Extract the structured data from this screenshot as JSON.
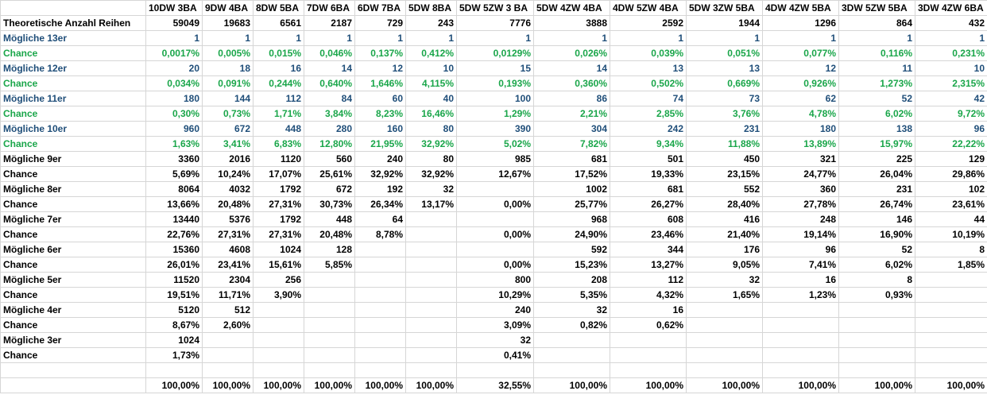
{
  "sheet": {
    "headers": [
      "",
      "10DW 3BA",
      "9DW 4BA",
      "8DW 5BA",
      "7DW 6BA",
      "6DW 7BA",
      "5DW 8BA",
      "5DW 5ZW 3 BA",
      "5DW 4ZW 4BA",
      "4DW 5ZW 4BA",
      "5DW 3ZW 5BA",
      "4DW 4ZW 5BA",
      "3DW 5ZW 5BA",
      "3DW 4ZW 6BA"
    ],
    "rows": [
      {
        "style": "header",
        "cells": [
          "Theoretische Anzahl Reihen",
          "59049",
          "19683",
          "6561",
          "2187",
          "729",
          "243",
          "7776",
          "3888",
          "2592",
          "1944",
          "1296",
          "864",
          "432"
        ]
      },
      {
        "style": "blue",
        "cells": [
          "Mögliche 13er",
          "1",
          "1",
          "1",
          "1",
          "1",
          "1",
          "1",
          "1",
          "1",
          "1",
          "1",
          "1",
          "1"
        ]
      },
      {
        "style": "green",
        "cells": [
          "Chance",
          "0,0017%",
          "0,005%",
          "0,015%",
          "0,046%",
          "0,137%",
          "0,412%",
          "0,0129%",
          "0,026%",
          "0,039%",
          "0,051%",
          "0,077%",
          "0,116%",
          "0,231%"
        ]
      },
      {
        "style": "blue",
        "cells": [
          "Mögliche 12er",
          "20",
          "18",
          "16",
          "14",
          "12",
          "10",
          "15",
          "14",
          "13",
          "13",
          "12",
          "11",
          "10"
        ]
      },
      {
        "style": "green",
        "cells": [
          "Chance",
          "0,034%",
          "0,091%",
          "0,244%",
          "0,640%",
          "1,646%",
          "4,115%",
          "0,193%",
          "0,360%",
          "0,502%",
          "0,669%",
          "0,926%",
          "1,273%",
          "2,315%"
        ]
      },
      {
        "style": "blue",
        "cells": [
          "Mögliche 11er",
          "180",
          "144",
          "112",
          "84",
          "60",
          "40",
          "100",
          "86",
          "74",
          "73",
          "62",
          "52",
          "42"
        ]
      },
      {
        "style": "green",
        "cells": [
          "Chance",
          "0,30%",
          "0,73%",
          "1,71%",
          "3,84%",
          "8,23%",
          "16,46%",
          "1,29%",
          "2,21%",
          "2,85%",
          "3,76%",
          "4,78%",
          "6,02%",
          "9,72%"
        ]
      },
      {
        "style": "blue",
        "cells": [
          "Mögliche 10er",
          "960",
          "672",
          "448",
          "280",
          "160",
          "80",
          "390",
          "304",
          "242",
          "231",
          "180",
          "138",
          "96"
        ]
      },
      {
        "style": "green",
        "cells": [
          "Chance",
          "1,63%",
          "3,41%",
          "6,83%",
          "12,80%",
          "21,95%",
          "32,92%",
          "5,02%",
          "7,82%",
          "9,34%",
          "11,88%",
          "13,89%",
          "15,97%",
          "22,22%"
        ]
      },
      {
        "style": "black",
        "cells": [
          "Mögliche 9er",
          "3360",
          "2016",
          "1120",
          "560",
          "240",
          "80",
          "985",
          "681",
          "501",
          "450",
          "321",
          "225",
          "129"
        ]
      },
      {
        "style": "black",
        "cells": [
          "Chance",
          "5,69%",
          "10,24%",
          "17,07%",
          "25,61%",
          "32,92%",
          "32,92%",
          "12,67%",
          "17,52%",
          "19,33%",
          "23,15%",
          "24,77%",
          "26,04%",
          "29,86%"
        ]
      },
      {
        "style": "black",
        "cells": [
          "Mögliche 8er",
          "8064",
          "4032",
          "1792",
          "672",
          "192",
          "32",
          "",
          "1002",
          "681",
          "552",
          "360",
          "231",
          "102"
        ]
      },
      {
        "style": "black",
        "cells": [
          "Chance",
          "13,66%",
          "20,48%",
          "27,31%",
          "30,73%",
          "26,34%",
          "13,17%",
          "0,00%",
          "25,77%",
          "26,27%",
          "28,40%",
          "27,78%",
          "26,74%",
          "23,61%"
        ]
      },
      {
        "style": "black",
        "cells": [
          "Mögliche 7er",
          "13440",
          "5376",
          "1792",
          "448",
          "64",
          "",
          "",
          "968",
          "608",
          "416",
          "248",
          "146",
          "44"
        ]
      },
      {
        "style": "black",
        "cells": [
          "Chance",
          "22,76%",
          "27,31%",
          "27,31%",
          "20,48%",
          "8,78%",
          "",
          "0,00%",
          "24,90%",
          "23,46%",
          "21,40%",
          "19,14%",
          "16,90%",
          "10,19%"
        ]
      },
      {
        "style": "black",
        "cells": [
          "Mögliche 6er",
          "15360",
          "4608",
          "1024",
          "128",
          "",
          "",
          "",
          "592",
          "344",
          "176",
          "96",
          "52",
          "8"
        ]
      },
      {
        "style": "black",
        "cells": [
          "Chance",
          "26,01%",
          "23,41%",
          "15,61%",
          "5,85%",
          "",
          "",
          "0,00%",
          "15,23%",
          "13,27%",
          "9,05%",
          "7,41%",
          "6,02%",
          "1,85%"
        ]
      },
      {
        "style": "black",
        "cells": [
          "Mögliche 5er",
          "11520",
          "2304",
          "256",
          "",
          "",
          "",
          "800",
          "208",
          "112",
          "32",
          "16",
          "8",
          ""
        ]
      },
      {
        "style": "black",
        "cells": [
          "Chance",
          "19,51%",
          "11,71%",
          "3,90%",
          "",
          "",
          "",
          "10,29%",
          "5,35%",
          "4,32%",
          "1,65%",
          "1,23%",
          "0,93%",
          ""
        ]
      },
      {
        "style": "black",
        "cells": [
          "Mögliche 4er",
          "5120",
          "512",
          "",
          "",
          "",
          "",
          "240",
          "32",
          "16",
          "",
          "",
          "",
          ""
        ]
      },
      {
        "style": "black",
        "cells": [
          "Chance",
          "8,67%",
          "2,60%",
          "",
          "",
          "",
          "",
          "3,09%",
          "0,82%",
          "0,62%",
          "",
          "",
          "",
          ""
        ]
      },
      {
        "style": "black",
        "cells": [
          "Mögliche 3er",
          "1024",
          "",
          "",
          "",
          "",
          "",
          "32",
          "",
          "",
          "",
          "",
          "",
          ""
        ]
      },
      {
        "style": "black",
        "cells": [
          "Chance",
          "1,73%",
          "",
          "",
          "",
          "",
          "",
          "0,41%",
          "",
          "",
          "",
          "",
          "",
          ""
        ]
      },
      {
        "style": "black",
        "cells": [
          "",
          "",
          "",
          "",
          "",
          "",
          "",
          "",
          "",
          "",
          "",
          "",
          "",
          ""
        ]
      },
      {
        "style": "black",
        "cells": [
          "",
          "100,00%",
          "100,00%",
          "100,00%",
          "100,00%",
          "100,00%",
          "100,00%",
          "32,55%",
          "100,00%",
          "100,00%",
          "100,00%",
          "100,00%",
          "100,00%",
          "100,00%"
        ]
      }
    ]
  }
}
